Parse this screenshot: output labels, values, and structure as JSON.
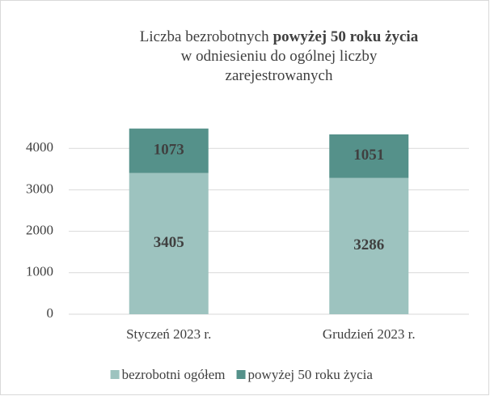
{
  "chart_data": {
    "type": "stacked_bar",
    "title": [
      [
        {
          "text": "Liczba bezrobotnych"
        },
        {
          "text": "powyżej 50 roku życia",
          "bold": true
        }
      ],
      [
        {
          "text": "w odniesieniu do ogólnej liczby"
        }
      ],
      [
        {
          "text": "zarejestrowanych"
        }
      ]
    ],
    "categories": [
      "Styczeń 2023 r.",
      "Grudzień 2023 r."
    ],
    "series": [
      {
        "name": "bezrobotni ogółem",
        "color": "#9dc3bf",
        "values": [
          3405,
          3286
        ]
      },
      {
        "name": "powyżej 50 roku życia",
        "color": "#55918a",
        "values": [
          1073,
          1051
        ]
      }
    ],
    "ylim": [
      0,
      5000
    ],
    "yticks": [
      0,
      1000,
      2000,
      3000,
      4000
    ],
    "grid": true,
    "legend": "bottom"
  }
}
